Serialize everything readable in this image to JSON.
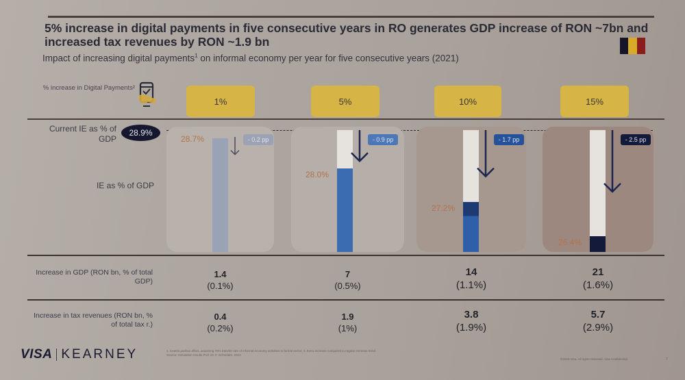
{
  "title": "5% increase in digital payments in five consecutive years in RO generates GDP increase of RON ~7bn and increased tax revenues by RON ~1.9 bn",
  "subtitle": "Impact of increasing digital payments",
  "subtitle_sup": "1",
  "subtitle_rest": " on informal economy per year for five consecutive years (2021)",
  "flag_colors": [
    "#15152a",
    "#d9a928",
    "#8a1c1c"
  ],
  "row_labels": {
    "pct_increase": "% increase in Digital Payments²",
    "current_ie": "Current IE as % of GDP",
    "ie_as_gdp": "IE as % of GDP",
    "gdp_increase": "Increase in GDP (RON bn, % of total GDP)",
    "tax_increase": "Increase in tax revenues (RON bn, % of total tax r.)"
  },
  "current_ie_badge": "28.9%",
  "icons": {
    "phone": "mobile-payment-icon",
    "arrow": "arrow-down-icon"
  },
  "chart_data": {
    "type": "bar",
    "title": "IE as % of GDP",
    "baseline_label": "Current IE as % of GDP",
    "baseline": 28.9,
    "categories": [
      "1%",
      "5%",
      "10%",
      "15%"
    ],
    "values": [
      28.7,
      28.0,
      27.2,
      26.4
    ],
    "value_labels": [
      "28.7%",
      "28.0%",
      "27.2%",
      "26.4%"
    ],
    "deltas": [
      "- 0.2 pp",
      "- 0.9 pp",
      "- 1.7 pp",
      "- 2.5 pp"
    ],
    "delta_values": [
      -0.2,
      -0.9,
      -1.7,
      -2.5
    ],
    "bar_colors": [
      "#9aa3b5",
      "#3b6bb0",
      "#2f5fa8",
      "#141a3a"
    ],
    "badge_colors": [
      "#9aa2b3",
      "#4c78b8",
      "#26529c",
      "#141a3a"
    ],
    "panel_colors": [
      "#b9b2ac",
      "#b6aea8",
      "#a7988f",
      "#9d8880"
    ],
    "ylim": [
      0,
      28.9
    ],
    "xlabel": "% increase in Digital Payments",
    "ylabel": "IE as % of GDP"
  },
  "table": {
    "gdp": [
      {
        "value": "1.4",
        "pct": "(0.1%)"
      },
      {
        "value": "7",
        "pct": "(0.5%)"
      },
      {
        "value": "14",
        "pct": "(1.1%)"
      },
      {
        "value": "21",
        "pct": "(1.6%)"
      }
    ],
    "tax": [
      {
        "value": "0.4",
        "pct": "(0.2%)"
      },
      {
        "value": "1.9",
        "pct": "(1%)"
      },
      {
        "value": "3.8",
        "pct": "(1.9%)"
      },
      {
        "value": "5.7",
        "pct": "(2.9%)"
      }
    ]
  },
  "footer": {
    "logo_visa": "VISA",
    "logo_kearney": "KEARNEY",
    "footnote_1": "1. Ceteris paribus effect, assuming 70% transfer rate of informal economy activities to formal sector; 2. Extra increase compared to regular increase trend",
    "footnote_2": "Source: Simulation results Prof. Dr. F. Schneider, 2023",
    "copyright": "©2023 Visa. All rights reserved. Visa Confidential",
    "page_number": "7"
  }
}
